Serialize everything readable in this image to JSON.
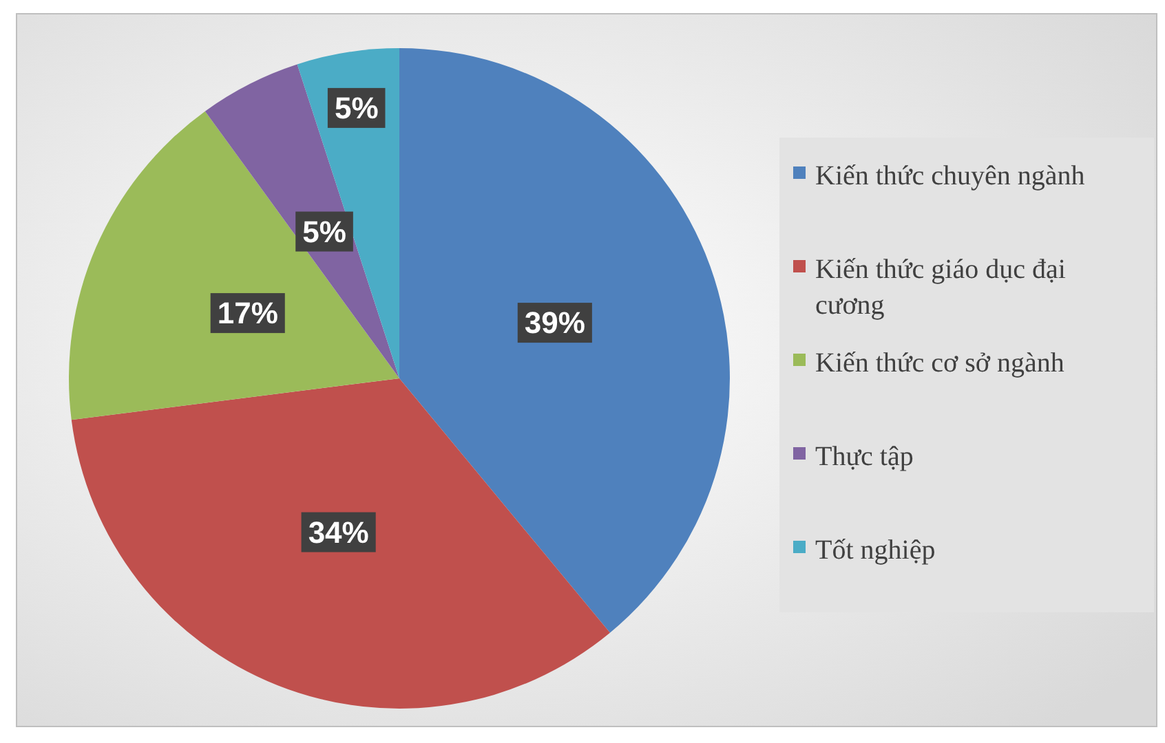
{
  "chart_data": {
    "type": "pie",
    "categories": [
      "Kiến thức chuyên ngành",
      "Kiến thức giáo dục đại cương",
      "Kiến thức cơ sở ngành",
      "Thực tập",
      "Tốt nghiệp"
    ],
    "values": [
      39,
      34,
      17,
      5,
      5
    ],
    "colors": [
      "#4f81bd",
      "#c0504d",
      "#9bbb59",
      "#8064a2",
      "#4bacc6"
    ],
    "value_labels": [
      "39%",
      "34%",
      "17%",
      "5%",
      "5%"
    ],
    "legend": "right"
  }
}
